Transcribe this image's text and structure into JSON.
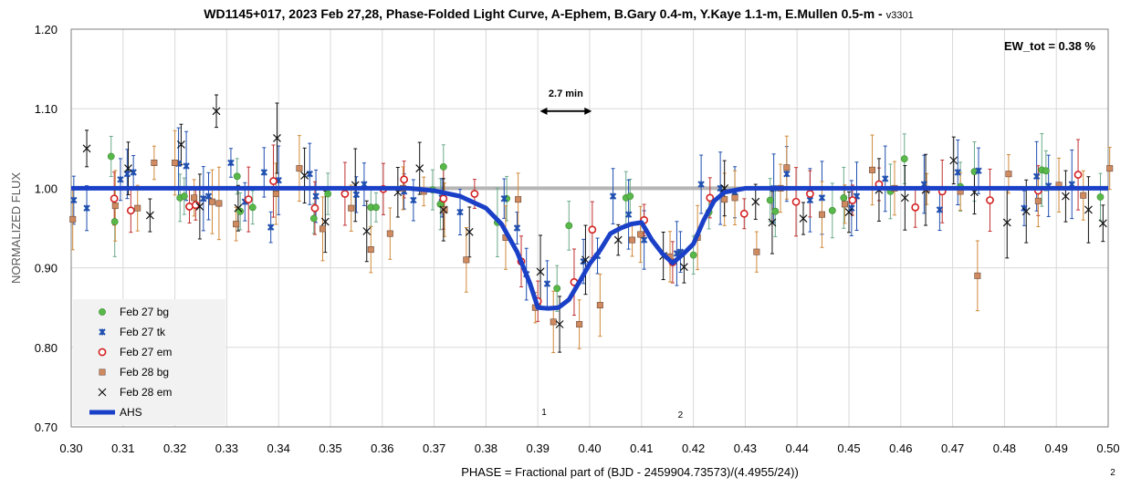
{
  "chart_data": {
    "type": "scatter",
    "title": "WD1145+017, 2023 Feb 27,28, Phase-Folded Light Curve, A-Ephem, B.Gary 0.4-m, Y.Kaye 1.1-m, E.Mullen 0.5-m -",
    "version": "v3301",
    "xlabel": "PHASE = Fractional part of (BJD - 2459904.73573)/(4.4955/24))",
    "ylabel": "NORMALIZED FLUX",
    "xlim": [
      0.3,
      0.5
    ],
    "ylim": [
      0.7,
      1.2
    ],
    "xticks": [
      "0.30",
      "0.31",
      "0.32",
      "0.33",
      "0.34",
      "0.35",
      "0.36",
      "0.37",
      "0.38",
      "0.39",
      "0.40",
      "0.41",
      "0.42",
      "0.43",
      "0.44",
      "0.45",
      "0.46",
      "0.47",
      "0.48",
      "0.49",
      "0.50"
    ],
    "yticks": [
      "0.70",
      "0.80",
      "0.90",
      "1.00",
      "1.10",
      "1.20"
    ],
    "grid": true,
    "legend_position": "bottom-left",
    "annotations": {
      "ew_tot": "EW_tot = 0.38 %",
      "duration": "2.7 min",
      "duration_x": [
        0.3904,
        0.4004
      ],
      "duration_y": 1.097,
      "dip1_label": "1",
      "dip1_x": 0.3912,
      "dip2_label": "2",
      "dip2_x": 0.4175,
      "corner_mark": "2"
    },
    "baseline": 1.0,
    "series": [
      {
        "name": "Feb 27 bg",
        "marker": "circle",
        "color": "#59b84a",
        "err_color": "#6aaa8a",
        "points": [
          [
            0.3077,
            1.04
          ],
          [
            0.3084,
            0.958
          ],
          [
            0.321,
            0.988
          ],
          [
            0.3218,
            0.99
          ],
          [
            0.332,
            1.015
          ],
          [
            0.3326,
            0.971
          ],
          [
            0.335,
            0.976
          ],
          [
            0.3468,
            0.962
          ],
          [
            0.3495,
            0.993
          ],
          [
            0.3578,
            0.976
          ],
          [
            0.3588,
            0.976
          ],
          [
            0.3697,
            0.998
          ],
          [
            0.3718,
            1.027
          ],
          [
            0.3712,
            0.98
          ],
          [
            0.3822,
            0.957
          ],
          [
            0.384,
            0.987
          ],
          [
            0.3937,
            0.874
          ],
          [
            0.396,
            0.953
          ],
          [
            0.407,
            0.988
          ],
          [
            0.4078,
            0.99
          ],
          [
            0.42,
            0.916
          ],
          [
            0.423,
            0.97
          ],
          [
            0.4348,
            0.985
          ],
          [
            0.4358,
            0.971
          ],
          [
            0.4468,
            0.972
          ],
          [
            0.449,
            0.988
          ],
          [
            0.458,
            0.996
          ],
          [
            0.4607,
            1.037
          ],
          [
            0.4715,
            1.002
          ],
          [
            0.4742,
            1.021
          ],
          [
            0.4872,
            1.023
          ],
          [
            0.488,
            1.022
          ],
          [
            0.4985,
            0.989
          ]
        ]
      },
      {
        "name": "Feb 27 tk",
        "marker": "star",
        "color": "#1f4fb0",
        "err_color": "#1f4fb0",
        "points": [
          [
            0.3005,
            0.985
          ],
          [
            0.303,
            0.975
          ],
          [
            0.3095,
            1.011
          ],
          [
            0.3108,
            1.018
          ],
          [
            0.312,
            1.02
          ],
          [
            0.3207,
            1.031
          ],
          [
            0.3222,
            1.028
          ],
          [
            0.3255,
            0.987
          ],
          [
            0.3265,
            0.99
          ],
          [
            0.3308,
            1.032
          ],
          [
            0.3335,
            0.983
          ],
          [
            0.3372,
            1.02
          ],
          [
            0.3385,
            0.951
          ],
          [
            0.34,
            1.01
          ],
          [
            0.346,
            1.018
          ],
          [
            0.3472,
            0.99
          ],
          [
            0.355,
            0.992
          ],
          [
            0.3565,
            1.005
          ],
          [
            0.3642,
            0.996
          ],
          [
            0.366,
            0.985
          ],
          [
            0.3715,
            0.988
          ],
          [
            0.375,
            0.97
          ],
          [
            0.3835,
            0.987
          ],
          [
            0.386,
            0.95
          ],
          [
            0.3878,
            0.892
          ],
          [
            0.3918,
            0.88
          ],
          [
            0.3988,
            0.908
          ],
          [
            0.4015,
            0.915
          ],
          [
            0.4045,
            0.99
          ],
          [
            0.4075,
            0.967
          ],
          [
            0.4105,
            0.935
          ],
          [
            0.4168,
            0.918
          ],
          [
            0.4175,
            0.92
          ],
          [
            0.4215,
            1.005
          ],
          [
            0.4252,
            1.0
          ],
          [
            0.428,
            0.995
          ],
          [
            0.4355,
            1.0
          ],
          [
            0.438,
            1.018
          ],
          [
            0.4425,
            0.985
          ],
          [
            0.4448,
            0.988
          ],
          [
            0.4505,
            0.975
          ],
          [
            0.4515,
            0.99
          ],
          [
            0.457,
            1.012
          ],
          [
            0.4645,
            1.005
          ],
          [
            0.4675,
            0.973
          ],
          [
            0.471,
            1.02
          ],
          [
            0.475,
            1.022
          ],
          [
            0.4838,
            0.975
          ],
          [
            0.4862,
            1.015
          ],
          [
            0.4885,
            1.003
          ],
          [
            0.493,
            1.005
          ]
        ]
      },
      {
        "name": "Feb 27 em",
        "marker": "ring",
        "color": "#d42020",
        "err_color": "#c03030",
        "points": [
          [
            0.3083,
            0.987
          ],
          [
            0.3115,
            0.972
          ],
          [
            0.3228,
            0.977
          ],
          [
            0.324,
            0.979
          ],
          [
            0.3342,
            0.986
          ],
          [
            0.339,
            1.009
          ],
          [
            0.347,
            0.975
          ],
          [
            0.3528,
            0.993
          ],
          [
            0.3602,
            0.999
          ],
          [
            0.3642,
            1.011
          ],
          [
            0.3718,
            0.987
          ],
          [
            0.3778,
            0.993
          ],
          [
            0.3868,
            0.908
          ],
          [
            0.39,
            0.858
          ],
          [
            0.397,
            0.882
          ],
          [
            0.4005,
            0.948
          ],
          [
            0.4105,
            0.96
          ],
          [
            0.416,
            0.907
          ],
          [
            0.4232,
            0.988
          ],
          [
            0.4298,
            0.968
          ],
          [
            0.4398,
            0.983
          ],
          [
            0.4425,
            0.993
          ],
          [
            0.4507,
            0.985
          ],
          [
            0.4558,
            1.005
          ],
          [
            0.4628,
            0.976
          ],
          [
            0.468,
            0.996
          ],
          [
            0.4772,
            0.985
          ],
          [
            0.4865,
            0.997
          ],
          [
            0.4942,
            1.017
          ]
        ]
      },
      {
        "name": "Feb 28 bg",
        "marker": "square",
        "color": "#d08a60",
        "err_color": "#d08a3a",
        "points": [
          [
            0.3003,
            0.961
          ],
          [
            0.3085,
            0.978
          ],
          [
            0.3128,
            0.975
          ],
          [
            0.316,
            1.032
          ],
          [
            0.32,
            1.032
          ],
          [
            0.3237,
            0.988
          ],
          [
            0.3272,
            0.983
          ],
          [
            0.3285,
            0.981
          ],
          [
            0.3318,
            0.955
          ],
          [
            0.3395,
            0.993
          ],
          [
            0.344,
            1.025
          ],
          [
            0.3485,
            0.949
          ],
          [
            0.354,
            0.975
          ],
          [
            0.3578,
            0.923
          ],
          [
            0.3615,
            0.943
          ],
          [
            0.364,
            1.0
          ],
          [
            0.368,
            0.996
          ],
          [
            0.372,
            0.973
          ],
          [
            0.3762,
            0.91
          ],
          [
            0.3838,
            0.938
          ],
          [
            0.3862,
            0.986
          ],
          [
            0.3895,
            0.85
          ],
          [
            0.393,
            0.832
          ],
          [
            0.398,
            0.829
          ],
          [
            0.402,
            0.853
          ],
          [
            0.4082,
            0.935
          ],
          [
            0.4098,
            0.942
          ],
          [
            0.4155,
            0.914
          ],
          [
            0.4208,
            0.938
          ],
          [
            0.426,
            0.986
          ],
          [
            0.428,
            0.988
          ],
          [
            0.4322,
            0.92
          ],
          [
            0.4368,
            1.0
          ],
          [
            0.438,
            1.026
          ],
          [
            0.4448,
            0.967
          ],
          [
            0.4492,
            0.98
          ],
          [
            0.4545,
            1.023
          ],
          [
            0.4588,
            1.0
          ],
          [
            0.465,
            0.999
          ],
          [
            0.4715,
            0.996
          ],
          [
            0.4748,
            0.89
          ],
          [
            0.4808,
            1.018
          ],
          [
            0.4865,
            0.984
          ],
          [
            0.4905,
            1.004
          ],
          [
            0.4952,
            0.991
          ],
          [
            0.5003,
            1.025
          ]
        ]
      },
      {
        "name": "Feb 28 em",
        "marker": "cross",
        "color": "#111111",
        "err_color": "#111111",
        "points": [
          [
            0.303,
            1.05
          ],
          [
            0.311,
            1.025
          ],
          [
            0.3152,
            0.966
          ],
          [
            0.3212,
            1.055
          ],
          [
            0.3248,
            0.977
          ],
          [
            0.328,
            1.097
          ],
          [
            0.3322,
            0.975
          ],
          [
            0.3397,
            1.063
          ],
          [
            0.345,
            1.016
          ],
          [
            0.349,
            0.958
          ],
          [
            0.3548,
            1.004
          ],
          [
            0.357,
            0.946
          ],
          [
            0.363,
            0.995
          ],
          [
            0.3672,
            1.025
          ],
          [
            0.3718,
            0.973
          ],
          [
            0.3768,
            0.945
          ],
          [
            0.3905,
            0.895
          ],
          [
            0.3942,
            0.829
          ],
          [
            0.3992,
            0.91
          ],
          [
            0.4055,
            0.935
          ],
          [
            0.4142,
            0.915
          ],
          [
            0.4182,
            0.901
          ],
          [
            0.426,
            1.0
          ],
          [
            0.432,
            0.983
          ],
          [
            0.4352,
            0.957
          ],
          [
            0.4412,
            0.962
          ],
          [
            0.45,
            0.97
          ],
          [
            0.4558,
            0.998
          ],
          [
            0.4608,
            0.988
          ],
          [
            0.4648,
            0.998
          ],
          [
            0.4702,
            1.035
          ],
          [
            0.4742,
            0.995
          ],
          [
            0.4805,
            0.957
          ],
          [
            0.4842,
            0.971
          ],
          [
            0.4918,
            0.99
          ],
          [
            0.4962,
            0.973
          ],
          [
            0.499,
            0.956
          ]
        ]
      },
      {
        "name": "AHS",
        "marker": "line",
        "color": "#1a40c8",
        "x": [
          0.3,
          0.365,
          0.37,
          0.375,
          0.38,
          0.383,
          0.386,
          0.3885,
          0.39,
          0.392,
          0.394,
          0.396,
          0.398,
          0.4,
          0.402,
          0.404,
          0.406,
          0.408,
          0.41,
          0.412,
          0.414,
          0.416,
          0.418,
          0.42,
          0.422,
          0.424,
          0.426,
          0.43,
          0.5
        ],
        "y": [
          1.0,
          1.0,
          0.997,
          0.99,
          0.975,
          0.955,
          0.92,
          0.88,
          0.85,
          0.849,
          0.85,
          0.86,
          0.882,
          0.905,
          0.922,
          0.943,
          0.95,
          0.955,
          0.957,
          0.935,
          0.918,
          0.906,
          0.917,
          0.93,
          0.96,
          0.984,
          0.995,
          1.0,
          1.0
        ]
      }
    ]
  }
}
